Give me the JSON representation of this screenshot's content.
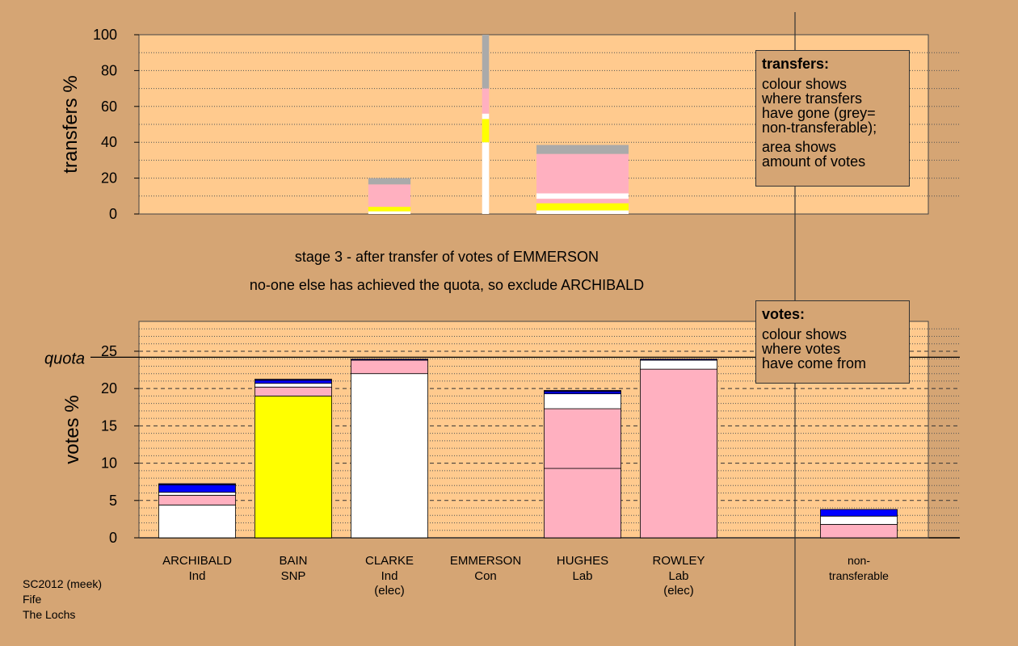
{
  "stage_title": "stage 3 - after transfer of votes of EMMERSON",
  "stage_subtitle": "no-one else has achieved the quota, so exclude ARCHIBALD",
  "footer": [
    "SC2012 (meek)",
    "Fife",
    "The Lochs"
  ],
  "legend_transfers": {
    "title": "transfers:",
    "para1": [
      "colour shows",
      "where transfers",
      "have gone (grey=",
      "non-transferable);"
    ],
    "para2": [
      "area shows",
      "amount of votes"
    ]
  },
  "legend_votes": {
    "title": "votes:",
    "para1": [
      "colour shows",
      "where votes",
      "have come from"
    ]
  },
  "colors": {
    "background": "#d5a574",
    "plot_bg": "#ffca8e",
    "Ind": "#ffffff",
    "SNP": "#ffff00",
    "Lab": "#ffb0c0",
    "Con": "#0000ff",
    "non_transferable": "#aaaaaa",
    "navy": "#000080"
  },
  "chart_data": [
    {
      "type": "bar",
      "stacked": true,
      "ylabel": "transfers %",
      "ylim": [
        0,
        100
      ],
      "yticks": [
        0,
        20,
        40,
        60,
        80,
        100
      ],
      "categories": [
        "ARCHIBALD",
        "BAIN",
        "CLARKE",
        "EMMERSON",
        "HUGHES",
        "ROWLEY"
      ],
      "bars": [
        {
          "category": "CLARKE",
          "width": 0.55,
          "segments": [
            {
              "color": "Ind",
              "value": 1.5
            },
            {
              "color": "SNP",
              "value": 2.5
            },
            {
              "color": "Lab",
              "value": 12.5
            },
            {
              "color": "non_transferable",
              "value": 3.5
            }
          ]
        },
        {
          "category": "EMMERSON",
          "width": 0.09,
          "segments": [
            {
              "color": "Ind",
              "value": 40
            },
            {
              "color": "SNP",
              "value": 13
            },
            {
              "color": "Ind",
              "value": 3
            },
            {
              "color": "Lab",
              "value": 14
            },
            {
              "color": "non_transferable",
              "value": 30
            }
          ]
        },
        {
          "category": "HUGHES",
          "width": 1.2,
          "segments": [
            {
              "color": "Ind",
              "value": 2
            },
            {
              "color": "SNP",
              "value": 4
            },
            {
              "color": "Lab",
              "value": 2.5
            },
            {
              "color": "Ind",
              "value": 3
            },
            {
              "color": "Lab",
              "value": 1
            },
            {
              "color": "Lab",
              "value": 21
            },
            {
              "color": "non_transferable",
              "value": 5
            }
          ]
        }
      ]
    },
    {
      "type": "bar",
      "stacked": true,
      "ylabel": "votes %",
      "ylim": [
        0,
        29
      ],
      "yticks": [
        0,
        5,
        10,
        15,
        20,
        25
      ],
      "quota": 24.2,
      "quota_label": "quota",
      "categories": [
        {
          "name": "ARCHIBALD",
          "sub": [
            "Ind"
          ]
        },
        {
          "name": "BAIN",
          "sub": [
            "SNP"
          ]
        },
        {
          "name": "CLARKE",
          "sub": [
            "Ind",
            "(elec)"
          ]
        },
        {
          "name": "EMMERSON",
          "sub": [
            "Con"
          ]
        },
        {
          "name": "HUGHES",
          "sub": [
            "Lab"
          ]
        },
        {
          "name": "ROWLEY",
          "sub": [
            "Lab",
            "(elec)"
          ]
        },
        {
          "name": "non-",
          "sub": [
            "transferable"
          ]
        }
      ],
      "series_stacks": [
        [
          {
            "color": "Ind",
            "value": 4.4
          },
          {
            "color": "Lab",
            "value": 1.3
          },
          {
            "color": "Ind",
            "value": 0.4
          },
          {
            "color": "Con",
            "value": 1.0
          },
          {
            "color": "navy",
            "value": 0.15
          }
        ],
        [
          {
            "color": "SNP",
            "value": 19.0
          },
          {
            "color": "Lab",
            "value": 1.2
          },
          {
            "color": "Ind",
            "value": 0.5
          },
          {
            "color": "Con",
            "value": 0.4
          },
          {
            "color": "navy",
            "value": 0.15
          }
        ],
        [
          {
            "color": "Ind",
            "value": 22.0
          },
          {
            "color": "Lab",
            "value": 1.8
          },
          {
            "color": "navy",
            "value": 0.15
          }
        ],
        [],
        [
          {
            "color": "Lab",
            "value": 9.3
          },
          {
            "color": "Lab",
            "value": 8.0
          },
          {
            "color": "Ind",
            "value": 2.0
          },
          {
            "color": "Con",
            "value": 0.3
          },
          {
            "color": "navy",
            "value": 0.15
          }
        ],
        [
          {
            "color": "Lab",
            "value": 22.6
          },
          {
            "color": "Ind",
            "value": 1.2
          },
          {
            "color": "navy",
            "value": 0.15
          }
        ],
        [
          {
            "color": "Lab",
            "value": 1.8
          },
          {
            "color": "Ind",
            "value": 1.1
          },
          {
            "color": "Con",
            "value": 0.9
          }
        ]
      ]
    }
  ]
}
